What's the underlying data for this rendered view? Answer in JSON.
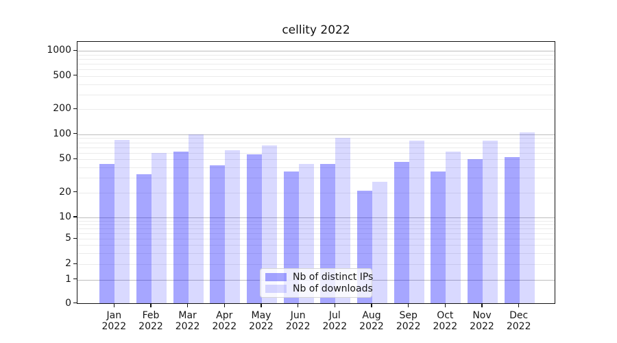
{
  "chart_data": {
    "type": "bar",
    "title": "cellity 2022",
    "categories": [
      "Jan",
      "Feb",
      "Mar",
      "Apr",
      "May",
      "Jun",
      "Jul",
      "Aug",
      "Sep",
      "Oct",
      "Nov",
      "Dec"
    ],
    "category_year": "2022",
    "series": [
      {
        "name": "Nb of distinct IPs",
        "color": "rgba(0,0,255,0.35)",
        "values": [
          44,
          33,
          62,
          42,
          57,
          36,
          44,
          21,
          47,
          36,
          50,
          53
        ]
      },
      {
        "name": "Nb of downloads",
        "color": "rgba(0,0,255,0.15)",
        "values": [
          85,
          60,
          100,
          64,
          73,
          44,
          90,
          27,
          84,
          62,
          84,
          106
        ]
      }
    ],
    "xlabel": "",
    "ylabel": "",
    "y_axis": {
      "scale": "symlog",
      "ylim": [
        0,
        1300
      ],
      "tick_values": [
        0,
        1,
        2,
        5,
        10,
        20,
        50,
        100,
        200,
        500,
        1000
      ],
      "tick_labels": [
        "0",
        "1",
        "2",
        "5",
        "10",
        "20",
        "50",
        "100",
        "200",
        "500",
        "1000"
      ],
      "major_grid_values": [
        1,
        10,
        100,
        1000
      ],
      "minor_grid_values": [
        2,
        3,
        4,
        5,
        6,
        7,
        8,
        9,
        20,
        30,
        40,
        50,
        60,
        70,
        80,
        90,
        200,
        300,
        400,
        500,
        600,
        700,
        800,
        900
      ]
    },
    "grid": "on",
    "legend_position": "lower center",
    "colors": {
      "bars_dark": "rgba(0,0,255,0.35)",
      "bars_light": "rgba(0,0,255,0.15)",
      "major_grid": "#bdbdbd",
      "minor_grid": "#ebebeb",
      "frame": "#111111",
      "text": "#151515"
    }
  }
}
